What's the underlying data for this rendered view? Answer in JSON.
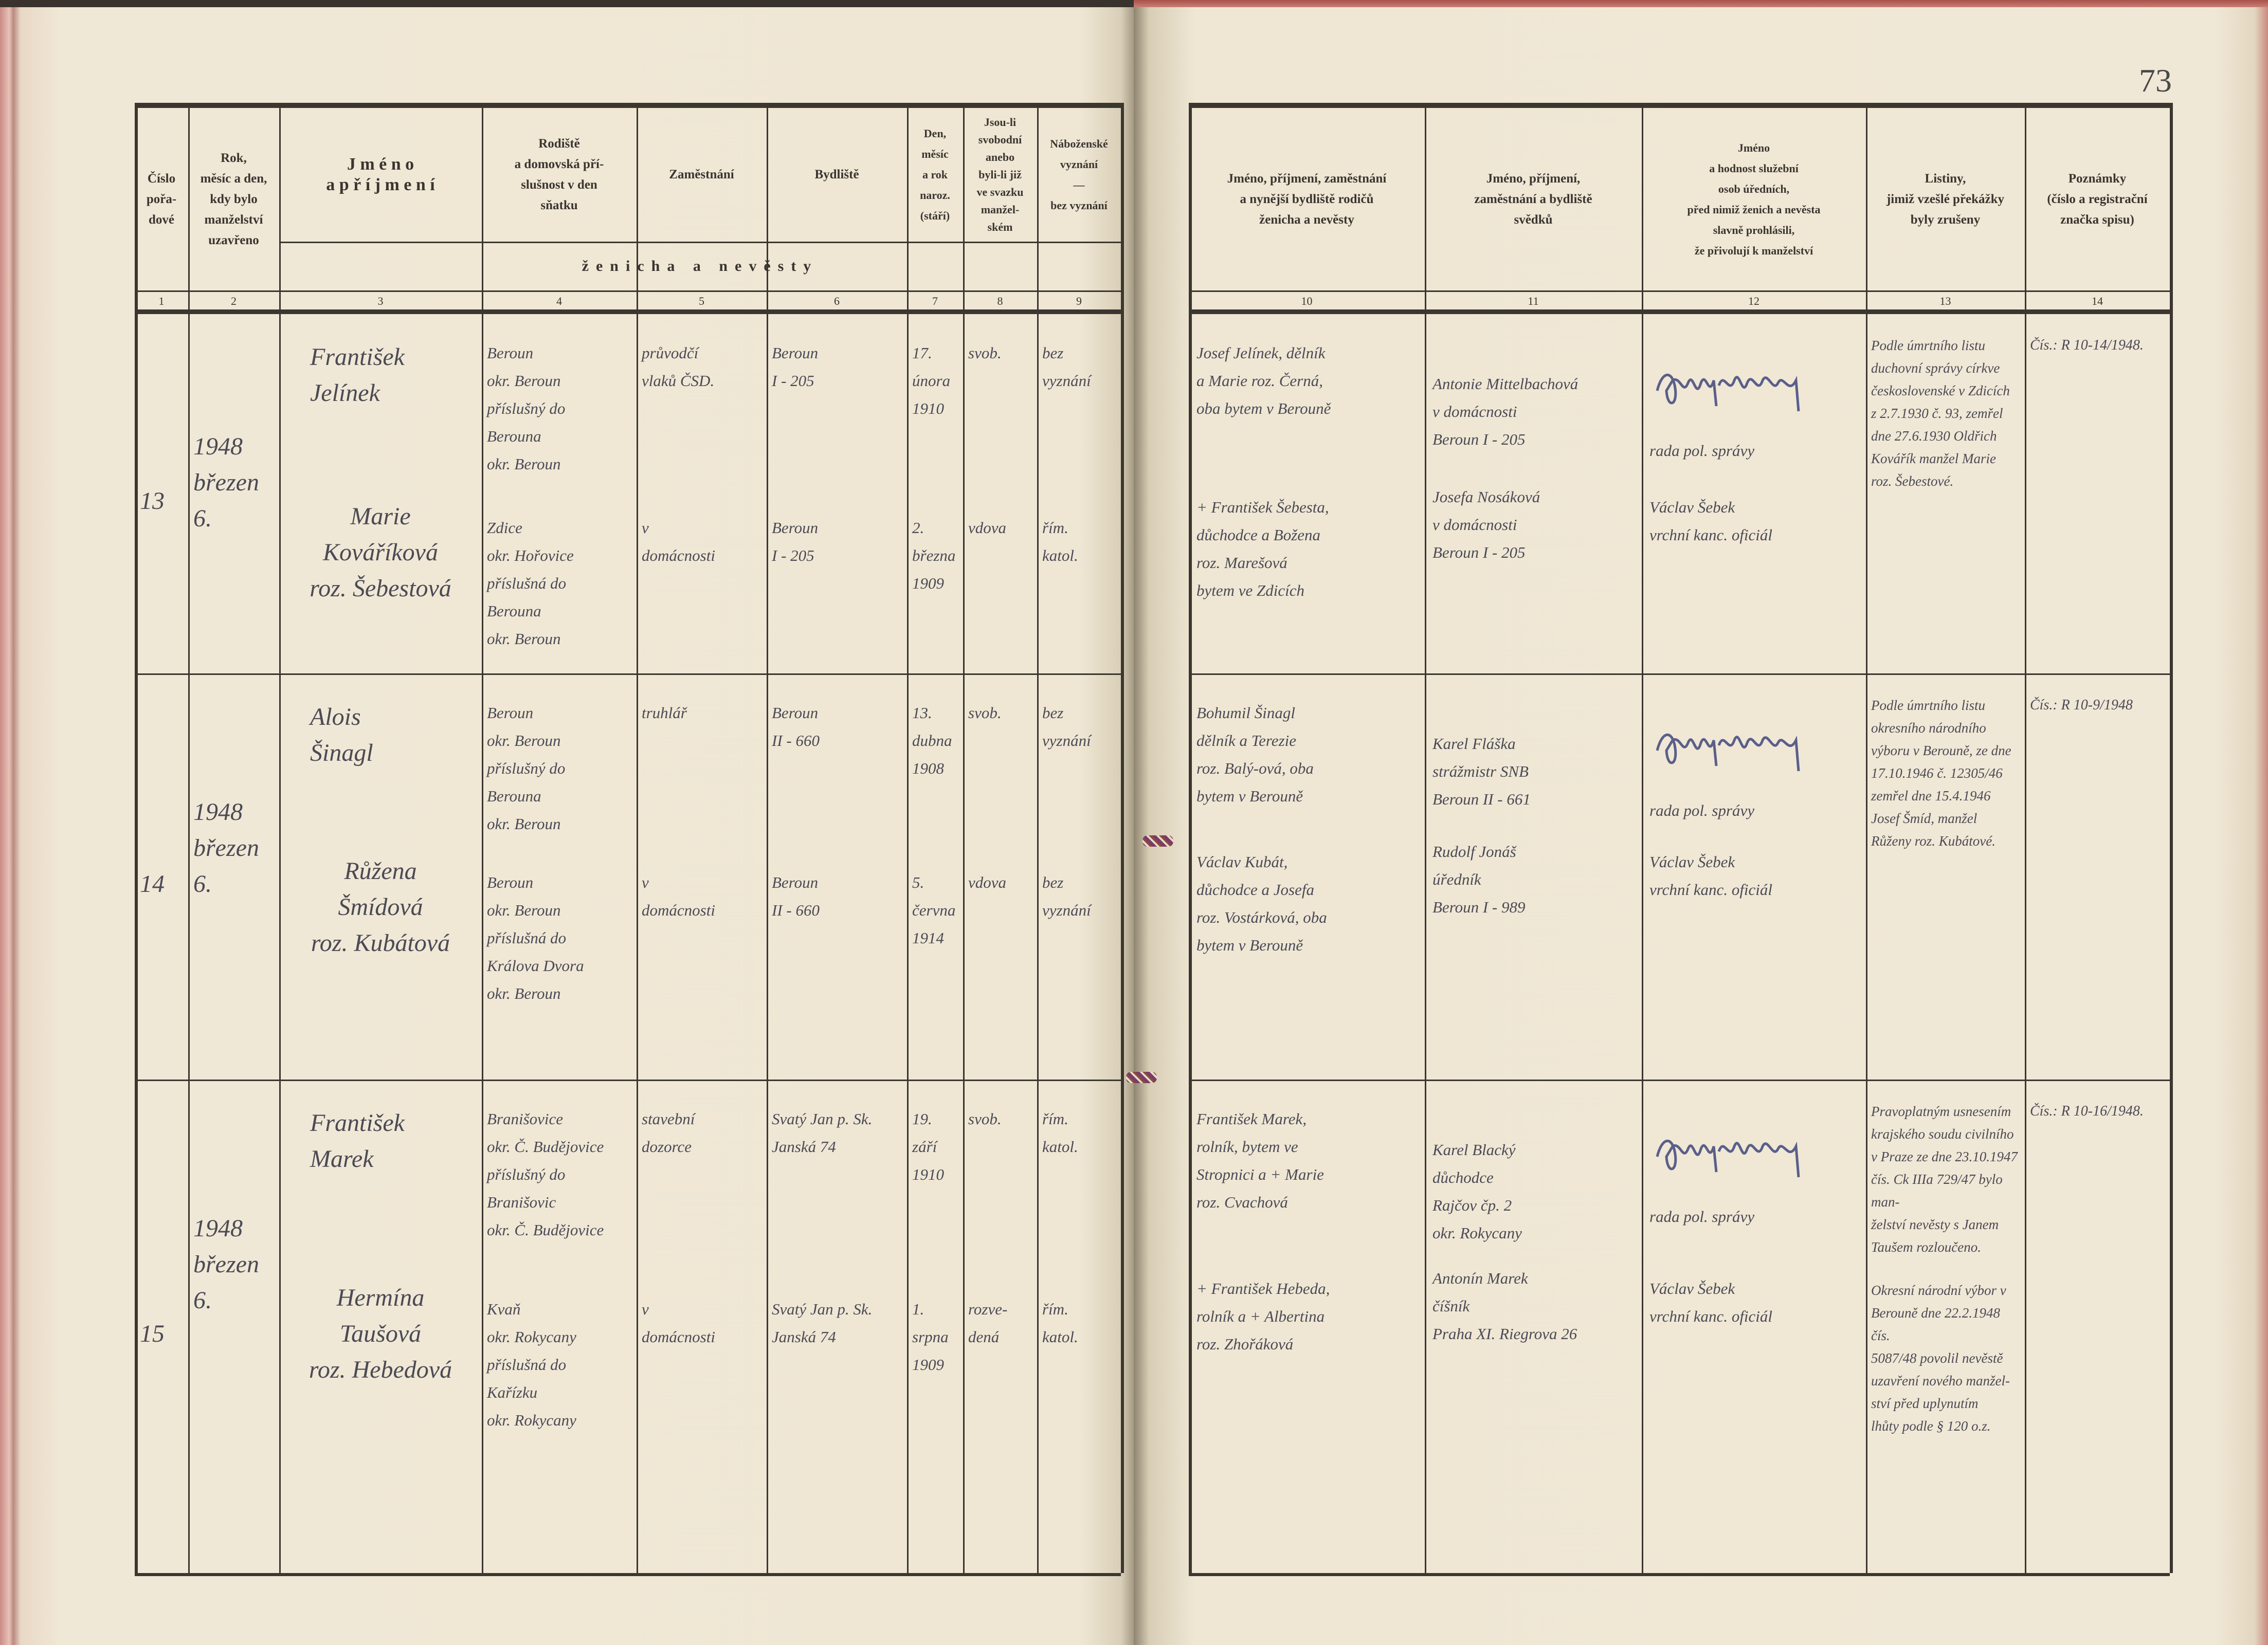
{
  "page_number": "73",
  "left_headers": [
    {
      "lines": [
        "Číslo",
        "pořa-",
        "dové"
      ]
    },
    {
      "lines": [
        "Rok,",
        "měsíc a den,",
        "kdy bylo",
        "manželství",
        "uzavřeno"
      ]
    },
    {
      "lines": [
        "J m é n o",
        "a  p ř í j m e n í"
      ]
    },
    {
      "lines": [
        "Rodiště",
        "a domovská pří-",
        "slušnost v den",
        "sňatku"
      ]
    },
    {
      "lines": [
        "Zaměstnání"
      ]
    },
    {
      "lines": [
        "Bydliště"
      ]
    },
    {
      "lines": [
        "Den,",
        "měsíc",
        "a rok",
        "naroz.",
        "(stáří)"
      ]
    },
    {
      "lines": [
        "Jsou-li",
        "svobodní",
        "anebo",
        "byli-li již",
        "ve svazku",
        "manžel-",
        "ském"
      ]
    },
    {
      "lines": [
        "Náboženské",
        "vyznání",
        "—",
        "bez vyznání"
      ]
    }
  ],
  "subheader": "ženicha a nevěsty",
  "right_headers": [
    {
      "lines": [
        "Jméno, příjmení, zaměstnání",
        "a nynější bydliště rodičů",
        "ženicha a nevěsty"
      ]
    },
    {
      "lines": [
        "Jméno, příjmení,",
        "zaměstnání a bydliště",
        "svědků"
      ]
    },
    {
      "lines": [
        "Jméno",
        "a hodnost služební",
        "osob úředních,",
        "před nimiž ženich a nevěsta",
        "slavně prohlásili,",
        "že přivolují k manželství"
      ]
    },
    {
      "lines": [
        "Listiny,",
        "jimiž vzešlé překážky",
        "byly zrušeny"
      ]
    },
    {
      "lines": [
        "Poznámky",
        "(číslo a registrační",
        "značka spisu)"
      ]
    }
  ],
  "column_numbers": [
    "1",
    "2",
    "3",
    "4",
    "5",
    "6",
    "7",
    "8",
    "9",
    "10",
    "11",
    "12",
    "13",
    "14"
  ],
  "entries": [
    {
      "number": "13",
      "date": [
        "1948",
        "březen",
        "6."
      ],
      "groom": {
        "name": [
          "František",
          "Jelínek"
        ],
        "birthplace": [
          "Beroun",
          "okr. Beroun",
          "příslušný do",
          "Berouna",
          "okr. Beroun"
        ],
        "occupation": [
          "průvodčí",
          "vlaků ČSD."
        ],
        "residence": [
          "Beroun",
          "I - 205"
        ],
        "birth": [
          "17.",
          "února",
          "1910"
        ],
        "status": [
          "svob."
        ],
        "religion": [
          "bez",
          "vyznání"
        ]
      },
      "bride": {
        "name": [
          "Marie",
          "Kováříková",
          "roz. Šebestová"
        ],
        "birthplace": [
          "Zdice",
          "okr. Hořovice",
          "příslušná do",
          "Berouna",
          "okr. Beroun"
        ],
        "occupation": [
          "v",
          "domácnosti"
        ],
        "residence": [
          "Beroun",
          "I - 205"
        ],
        "birth": [
          "2.",
          "března",
          "1909"
        ],
        "status": [
          "vdova"
        ],
        "religion": [
          "řím.",
          "katol."
        ]
      },
      "parents": [
        [
          "Josef Jelínek, dělník",
          "a Marie roz. Černá,",
          "oba bytem v Berouně"
        ],
        [
          "+ František Šebesta,",
          "důchodce a Božena",
          "roz. Marešová",
          "bytem ve Zdicích"
        ]
      ],
      "witnesses": [
        [
          "Antonie Mittelbachová",
          "v domácnosti",
          "Beroun I - 205"
        ],
        [
          "Josefa Nosáková",
          "v domácnosti",
          "Beroun I - 205"
        ]
      ],
      "officials": [
        [
          "rada pol. správy"
        ],
        [
          "Václav Šebek",
          "vrchní kanc. oficiál"
        ]
      ],
      "documents": [
        [
          "Podle úmrtního listu",
          "duchovní správy církve",
          "československé v Zdicích",
          "z 2.7.1930 č. 93, zemřel",
          "dne 27.6.1930 Oldřich",
          "Kovářík manžel Marie",
          "roz. Šebestové."
        ]
      ],
      "notes": "Čís.: R 10-14/1948."
    },
    {
      "number": "14",
      "date": [
        "1948",
        "březen",
        "6."
      ],
      "groom": {
        "name": [
          "Alois",
          "Šinagl"
        ],
        "birthplace": [
          "Beroun",
          "okr. Beroun",
          "příslušný do",
          "Berouna",
          "okr. Beroun"
        ],
        "occupation": [
          "truhlář"
        ],
        "residence": [
          "Beroun",
          "II - 660"
        ],
        "birth": [
          "13.",
          "dubna",
          "1908"
        ],
        "status": [
          "svob."
        ],
        "religion": [
          "bez",
          "vyznání"
        ]
      },
      "bride": {
        "name": [
          "Růžena",
          "Šmídová",
          "roz. Kubátová"
        ],
        "birthplace": [
          "Beroun",
          "okr. Beroun",
          "příslušná do",
          "Králova Dvora",
          "okr. Beroun"
        ],
        "occupation": [
          "v",
          "domácnosti"
        ],
        "residence": [
          "Beroun",
          "II - 660"
        ],
        "birth": [
          "5.",
          "června",
          "1914"
        ],
        "status": [
          "vdova"
        ],
        "religion": [
          "bez",
          "vyznání"
        ]
      },
      "parents": [
        [
          "Bohumil Šinagl",
          "dělník a Terezie",
          "roz. Balý-ová, oba",
          "bytem v Berouně"
        ],
        [
          "Václav Kubát,",
          "důchodce a Josefa",
          "roz. Vostárková, oba",
          "bytem v Berouně"
        ]
      ],
      "witnesses": [
        [
          "Karel Fláška",
          "strážmistr SNB",
          "Beroun II - 661"
        ],
        [
          "Rudolf Jonáš",
          "úředník",
          "Beroun I - 989"
        ]
      ],
      "officials": [
        [
          "rada pol. správy"
        ],
        [
          "Václav Šebek",
          "vrchní kanc. oficiál"
        ]
      ],
      "documents": [
        [
          "Podle úmrtního listu",
          "okresního národního",
          "výboru v Berouně, ze dne",
          "17.10.1946 č. 12305/46",
          "zemřel dne 15.4.1946",
          "Josef Šmíd, manžel",
          "Růženy roz. Kubátové."
        ]
      ],
      "notes": "Čís.: R 10-9/1948"
    },
    {
      "number": "15",
      "date": [
        "1948",
        "březen",
        "6."
      ],
      "groom": {
        "name": [
          "František",
          "Marek"
        ],
        "birthplace": [
          "Branišovice",
          "okr. Č. Budějovice",
          "příslušný do",
          "Branišovic",
          "okr. Č. Budějovice"
        ],
        "occupation": [
          "stavební",
          "dozorce"
        ],
        "residence": [
          "Svatý Jan p. Sk.",
          "Janská 74"
        ],
        "birth": [
          "19.",
          "září",
          "1910"
        ],
        "status": [
          "svob."
        ],
        "religion": [
          "řím.",
          "katol."
        ]
      },
      "bride": {
        "name": [
          "Hermína",
          "Taušová",
          "roz. Hebedová"
        ],
        "birthplace": [
          "Kvaň",
          "okr. Rokycany",
          "příslušná do",
          "Kařízku",
          "okr. Rokycany"
        ],
        "occupation": [
          "v",
          "domácnosti"
        ],
        "residence": [
          "Svatý Jan p. Sk.",
          "Janská 74"
        ],
        "birth": [
          "1.",
          "srpna",
          "1909"
        ],
        "status": [
          "rozve-",
          "dená"
        ],
        "religion": [
          "řím.",
          "katol."
        ]
      },
      "parents": [
        [
          "František Marek,",
          "rolník, bytem ve",
          "Stropnici a + Marie",
          "roz. Cvachová"
        ],
        [
          "+ František Hebeda,",
          "rolník a + Albertina",
          "roz. Zhořáková"
        ]
      ],
      "witnesses": [
        [
          "Karel Blacký",
          "důchodce",
          "Rajčov čp. 2",
          "okr. Rokycany"
        ],
        [
          "Antonín Marek",
          "číšník",
          "Praha XI. Riegrova 26"
        ]
      ],
      "officials": [
        [
          "rada pol. správy"
        ],
        [
          "Václav Šebek",
          "vrchní kanc. oficiál"
        ]
      ],
      "documents": [
        [
          "Pravoplatným usnesením",
          "krajského soudu civilního",
          "v Praze ze dne 23.10.1947",
          "čís. Ck IIIa 729/47 bylo man-",
          "želství nevěsty s Janem",
          "Taušem rozloučeno."
        ],
        [
          "Okresní národní výbor v",
          "Berouně dne 22.2.1948 čís.",
          "5087/48 povolil nevěstě",
          "uzavření nového manžel-",
          "ství před uplynutím",
          "lhůty podle § 120 o.z."
        ]
      ],
      "notes": "Čís.: R 10-16/1948."
    }
  ],
  "signature_text": "Ošmerlschlacko"
}
